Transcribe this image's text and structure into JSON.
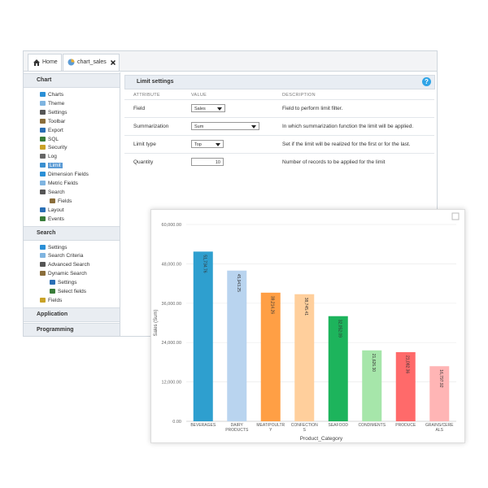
{
  "tabs": [
    "Home",
    "chart_sales"
  ],
  "sidebar": [
    {
      "title": "Chart",
      "items": [
        {
          "label": "Charts"
        },
        {
          "label": "Theme"
        },
        {
          "label": "Settings"
        },
        {
          "label": "Toolbar"
        },
        {
          "label": "Export"
        },
        {
          "label": "SQL"
        },
        {
          "label": "Security"
        },
        {
          "label": "Log"
        },
        {
          "label": "Limit",
          "selected": true
        },
        {
          "label": "Dimension Fields"
        },
        {
          "label": "Metric Fields"
        },
        {
          "label": "Search",
          "children": [
            "Fields"
          ]
        },
        {
          "label": "Layout"
        },
        {
          "label": "Events"
        }
      ]
    },
    {
      "title": "Search",
      "items": [
        {
          "label": "Settings"
        },
        {
          "label": "Search Criteria"
        },
        {
          "label": "Advanced Search"
        },
        {
          "label": "Dynamic Search",
          "children": [
            "Settings",
            "Select fields"
          ]
        },
        {
          "label": "Fields"
        }
      ]
    },
    {
      "title": "Application",
      "items": []
    },
    {
      "title": "Programming",
      "items": []
    }
  ],
  "panel": {
    "title": "Limit settings",
    "help": "?",
    "columns": [
      "ATTRIBUTE",
      "VALUE",
      "DESCRIPTION"
    ],
    "rows": [
      {
        "attribute": "Field",
        "value": "Sales",
        "description": "Field to perform limit filter."
      },
      {
        "attribute": "Summarization",
        "value": "Sum",
        "description": "In which summarization function the limit will be applied."
      },
      {
        "attribute": "Limit type",
        "value": "Top",
        "description": "Set if the limit will be realized for the first or for the last."
      },
      {
        "attribute": "Quantity",
        "value": "10",
        "description": "Number of records to be applied for the limit"
      }
    ]
  },
  "chart_data": {
    "type": "bar",
    "x_label": "Product_Category",
    "y_label": "Sales (Sum)",
    "categories": [
      "BEVERAGES",
      "DAIRY PRODUCTS",
      "MEAT/POULTRY",
      "CONFECTIONS",
      "SEAFOOD",
      "CONDIMENTS",
      "PRODUCE",
      "GRAINS/CEREALS"
    ],
    "values": [
      51734.76,
      45943.25,
      39214.26,
      38745.41,
      32052.09,
      21626.3,
      21082.36,
      16797.92
    ],
    "value_labels": [
      "51,734.76",
      "45,943.25",
      "39,214.26",
      "38,745.41",
      "32,052.09",
      "21,626.30",
      "21,082.36",
      "16,797.92"
    ],
    "colors": [
      "#2e9fcf",
      "#b9d4ef",
      "#ff9f45",
      "#ffcf9c",
      "#1db45c",
      "#a6e6aa",
      "#ff6a6a",
      "#ffb5b5"
    ],
    "ylim": [
      0,
      60000
    ],
    "yticks": [
      {
        "value": 0,
        "label": "0.00"
      },
      {
        "value": 12000,
        "label": "12,000.00"
      },
      {
        "value": 24000,
        "label": "24,000.00"
      },
      {
        "value": 36000,
        "label": "36,000.00"
      },
      {
        "value": 48000,
        "label": "48,000.00"
      },
      {
        "value": 60000,
        "label": "60,000.00"
      }
    ],
    "grid": true
  }
}
